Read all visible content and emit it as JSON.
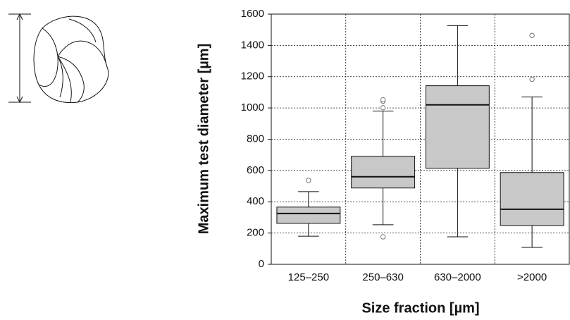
{
  "chart_data": {
    "type": "box",
    "y_label": "Maximum test diameter [µm]",
    "x_label": "Size fraction [µm]",
    "categories": [
      "125–250",
      "250–630",
      "630–2000",
      ">2000"
    ],
    "boxes": [
      {
        "low": 180,
        "q1": 262,
        "median": 325,
        "q3": 366,
        "high": 465,
        "outliers": [
          537
        ]
      },
      {
        "low": 253,
        "q1": 488,
        "median": 560,
        "q3": 691,
        "high": 980,
        "outliers": [
          176,
          1002,
          1043,
          1052
        ]
      },
      {
        "low": 176,
        "q1": 614,
        "median": 1020,
        "q3": 1142,
        "high": 1526,
        "outliers": []
      },
      {
        "low": 108,
        "q1": 248,
        "median": 352,
        "q3": 587,
        "high": 1070,
        "outliers": [
          1183,
          1463
        ]
      }
    ],
    "color": "#c8c8c8",
    "ylim": [
      0,
      1600
    ],
    "yticks": [
      0,
      200,
      400,
      600,
      800,
      1000,
      1200,
      1400,
      1600
    ],
    "grid": true
  }
}
